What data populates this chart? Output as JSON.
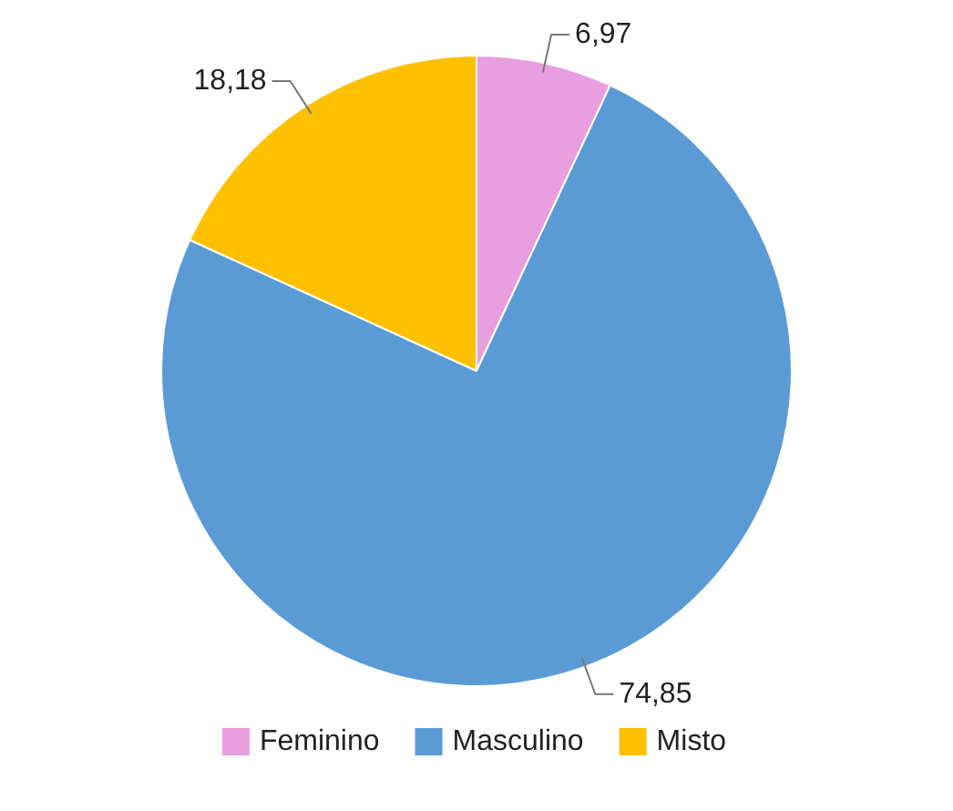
{
  "chart_data": {
    "type": "pie",
    "categories": [
      "Feminino",
      "Masculino",
      "Misto"
    ],
    "values": [
      6.97,
      74.85,
      18.18
    ],
    "value_labels": [
      "6,97",
      "74,85",
      "18,18"
    ],
    "colors": [
      "#e99ee0",
      "#5b9bd5",
      "#ffc000"
    ],
    "legend": "bottom"
  }
}
